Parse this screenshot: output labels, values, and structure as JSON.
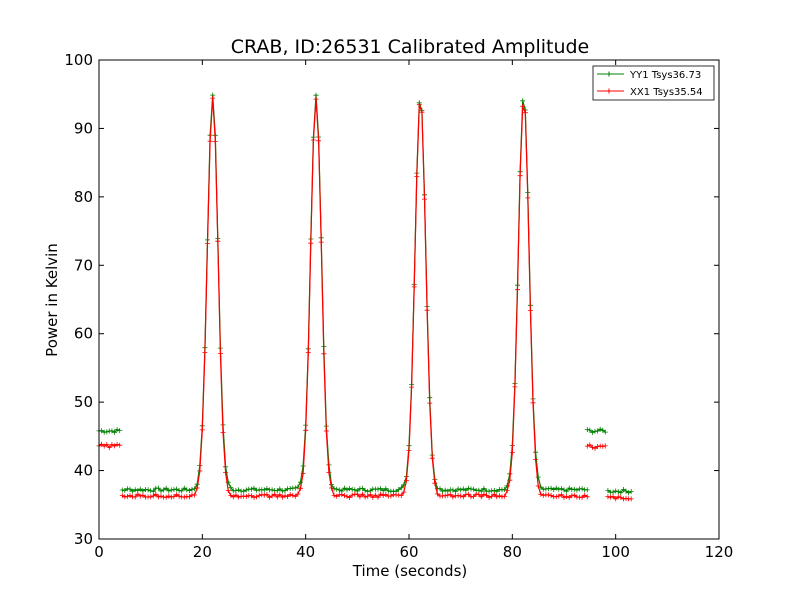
{
  "chart_data": {
    "type": "line",
    "title": "CRAB, ID:26531 Calibrated Amplitude",
    "xlabel": "Time (seconds)",
    "ylabel": "Power in Kelvin",
    "xlim": [
      0,
      120
    ],
    "ylim": [
      30,
      100
    ],
    "xticks": [
      "0",
      "20",
      "40",
      "60",
      "80",
      "100",
      "120"
    ],
    "yticks": [
      "30",
      "40",
      "50",
      "60",
      "70",
      "80",
      "90",
      "100"
    ],
    "grid": false,
    "legend_position": "top-right",
    "marker": "+",
    "peaks": [
      {
        "center": 22,
        "yy1": 95,
        "xx1": 94.5
      },
      {
        "center": 42,
        "yy1": 95,
        "xx1": 94.5
      },
      {
        "center": 62.2,
        "yy1": 95,
        "xx1": 94.5
      },
      {
        "center": 82.2,
        "yy1": 95,
        "xx1": 94.5
      }
    ],
    "series": [
      {
        "name": "YY1 Tsys36.73",
        "color": "#008000",
        "segments": [
          {
            "x": [
              0,
              4
            ],
            "level": 45.8
          },
          {
            "x": [
              4.5,
              94.5
            ],
            "level": 37.2
          },
          {
            "x": [
              94.5,
              98
            ],
            "level": 45.8
          },
          {
            "x": [
              98.5,
              103
            ],
            "level": 37.0
          }
        ]
      },
      {
        "name": "XX1 Tsys35.54",
        "color": "#ff0000",
        "segments": [
          {
            "x": [
              0,
              4
            ],
            "level": 43.6
          },
          {
            "x": [
              4.5,
              94.5
            ],
            "level": 36.3
          },
          {
            "x": [
              94.5,
              98
            ],
            "level": 43.5
          },
          {
            "x": [
              98.5,
              103
            ],
            "level": 36.0
          }
        ]
      }
    ]
  }
}
